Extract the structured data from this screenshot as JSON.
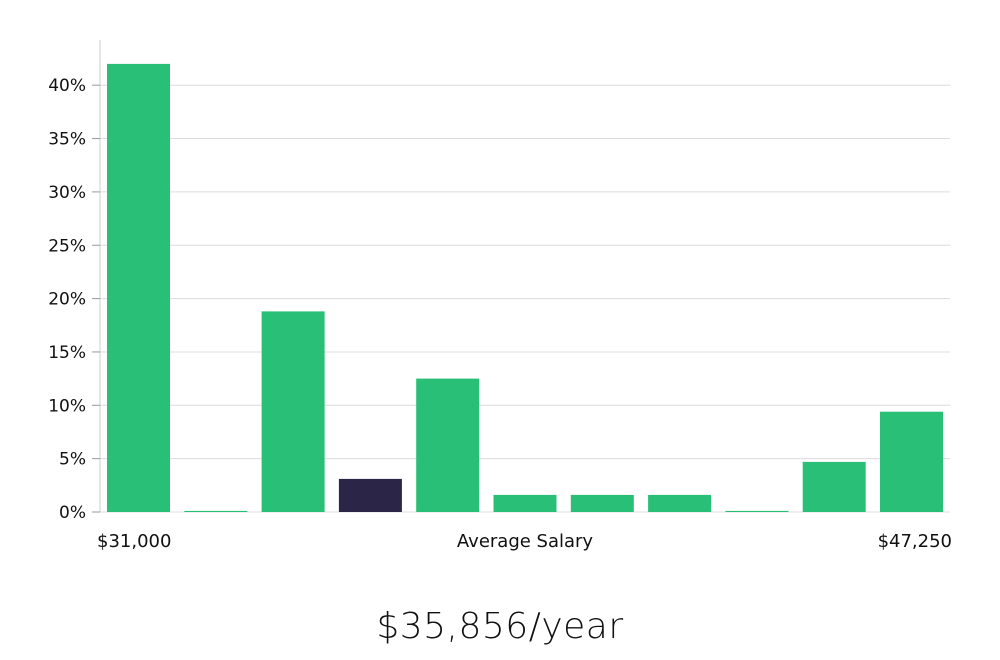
{
  "chart_data": {
    "type": "bar",
    "xlabel": "Average Salary",
    "x_range_labels": {
      "min": "$31,000",
      "max": "$47,250"
    },
    "ylim": [
      0,
      45
    ],
    "yticks": [
      0,
      5,
      10,
      15,
      20,
      25,
      30,
      35,
      40
    ],
    "ytick_labels": [
      "0%",
      "5%",
      "10%",
      "15%",
      "20%",
      "25%",
      "30%",
      "35%",
      "40%"
    ],
    "grid": true,
    "values": [
      42.0,
      0.1,
      18.8,
      3.1,
      12.5,
      1.6,
      1.6,
      1.6,
      0.1,
      4.7,
      9.4
    ],
    "highlight_index": 3,
    "colors": {
      "bar": "#2abf76",
      "highlight": "#2b2647",
      "grid": "#dcdcdc",
      "axis": "#cccccc"
    }
  },
  "summary": {
    "salary_text": "$35,856/year"
  }
}
